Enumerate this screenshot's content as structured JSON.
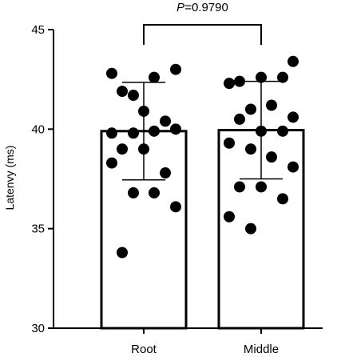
{
  "chart_data": {
    "type": "bar",
    "title": "",
    "xlabel": "",
    "ylabel": "Latenvy (ms)",
    "ylim": [
      30,
      45
    ],
    "yticks": [
      30,
      35,
      40,
      45
    ],
    "categories": [
      "Root",
      "Middle"
    ],
    "series": [
      {
        "values": [
          39.9,
          39.95
        ],
        "sd": [
          2.45,
          2.45
        ],
        "points": [
          [
            42.8,
            41.7,
            42.6,
            43.0,
            41.9,
            40.9,
            40.4,
            39.8,
            39.8,
            39.9,
            40.0,
            39.0,
            39.0,
            37.8,
            38.3,
            36.8,
            36.8,
            36.1,
            33.8
          ],
          [
            43.4,
            42.4,
            42.6,
            42.6,
            42.3,
            41.0,
            41.2,
            40.6,
            40.5,
            39.9,
            39.9,
            39.3,
            39.0,
            38.6,
            38.1,
            37.1,
            37.1,
            36.5,
            35.6,
            35.0
          ]
        ]
      }
    ],
    "annotation": {
      "p_label": "P",
      "p_value": "=0.9790",
      "between": [
        "Root",
        "Middle"
      ]
    },
    "colors": {
      "bar_fill": "#ffffff",
      "bar_stroke": "#000000",
      "point": "#000000"
    },
    "grid": false
  }
}
